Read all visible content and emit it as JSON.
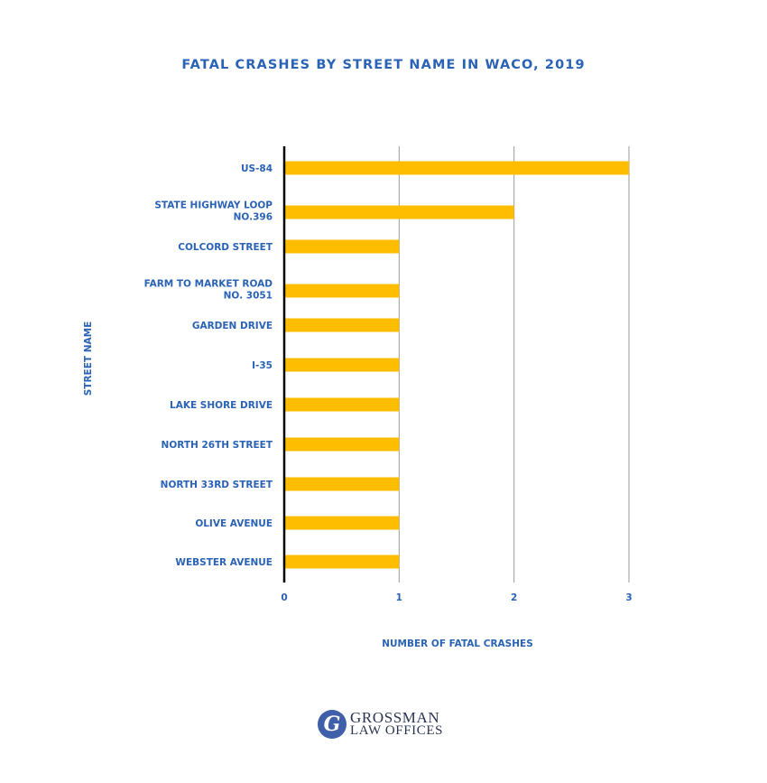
{
  "chart_data": {
    "type": "bar",
    "orientation": "horizontal",
    "title": "FATAL CRASHES BY STREET NAME IN WACO, 2019",
    "xlabel": "NUMBER OF FATAL CRASHES",
    "ylabel": "STREET NAME",
    "categories": [
      [
        "US-84"
      ],
      [
        "STATE HIGHWAY LOOP",
        "NO.396"
      ],
      [
        "COLCORD STREET"
      ],
      [
        "FARM TO MARKET ROAD",
        "NO. 3051"
      ],
      [
        "GARDEN DRIVE"
      ],
      [
        "I-35"
      ],
      [
        "LAKE SHORE DRIVE"
      ],
      [
        "NORTH 26TH STREET"
      ],
      [
        "NORTH 33RD STREET"
      ],
      [
        "OLIVE AVENUE"
      ],
      [
        "WEBSTER AVENUE"
      ]
    ],
    "values": [
      3,
      2,
      1,
      1,
      1,
      1,
      1,
      1,
      1,
      1,
      1
    ],
    "xlim": [
      0,
      3
    ],
    "xticks": [
      "0",
      "1",
      "2",
      "3"
    ],
    "grid": "vertical",
    "colors": {
      "bar": "#FFBD00",
      "text": "#2A63B5",
      "grid": "#9a9a9a",
      "axis": "#000000"
    }
  },
  "logo": {
    "mark": "G",
    "line1": "GROSSMAN",
    "line2": "LAW OFFICES"
  }
}
